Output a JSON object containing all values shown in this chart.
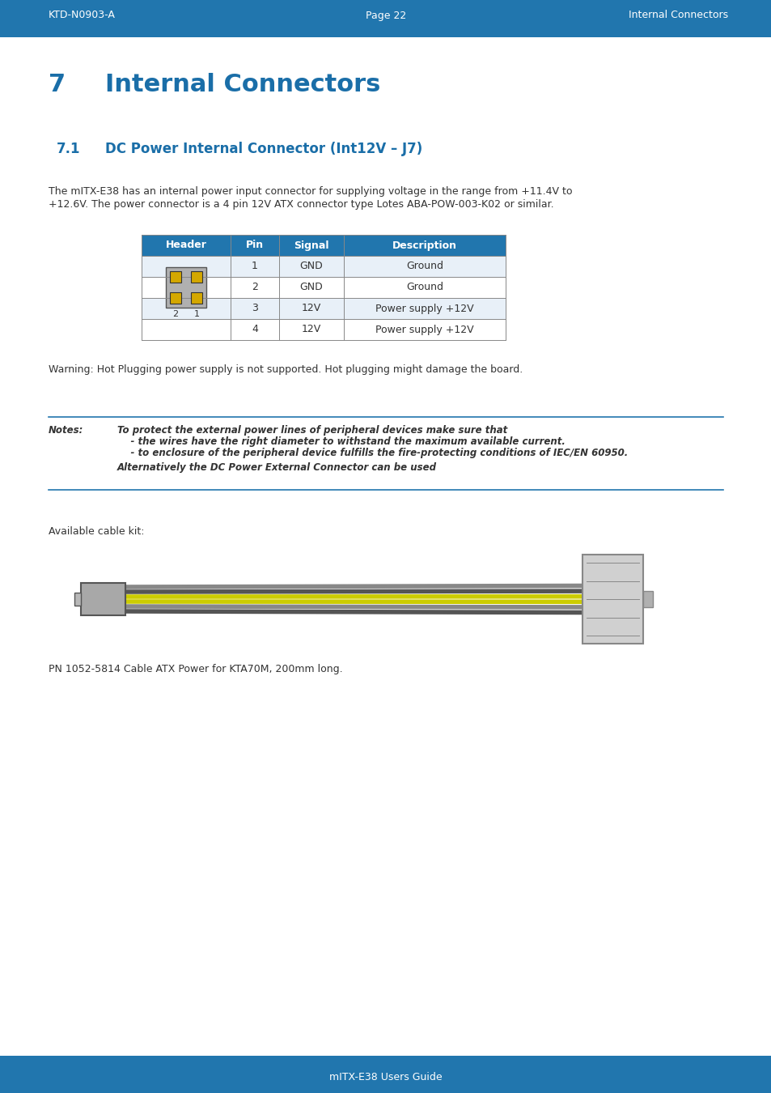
{
  "header_bg_color": "#2176AE",
  "header_text_color": "#FFFFFF",
  "header_left": "KTD-N0903-A",
  "header_center": "Page 22",
  "header_right": "Internal Connectors",
  "footer_text": "mITX-E38 Users Guide",
  "footer_bg_color": "#2176AE",
  "footer_text_color": "#FFFFFF",
  "body_bg_color": "#FFFFFF",
  "chapter_number": "7",
  "chapter_title": "Internal Connectors",
  "chapter_title_color": "#1A6EA8",
  "section_number": "7.1",
  "section_title": "DC Power Internal Connector (Int12V – J7)",
  "section_title_color": "#1A6EA8",
  "body_text_1": "The mITX-E38 has an internal power input connector for supplying voltage in the range from +11.4V to\n+12.6V. The power connector is a 4 pin 12V ATX connector type Lotes ABA-POW-003-K02 or similar.",
  "table_header_bg": "#2176AE",
  "table_header_text_color": "#FFFFFF",
  "table_headers": [
    "Header",
    "Pin",
    "Signal",
    "Description"
  ],
  "table_rows": [
    [
      "",
      "1",
      "GND",
      "Ground"
    ],
    [
      "",
      "2",
      "GND",
      "Ground"
    ],
    [
      "",
      "3",
      "12V",
      "Power supply +12V"
    ],
    [
      "",
      "4",
      "12V",
      "Power supply +12V"
    ]
  ],
  "warning_text": "Warning: Hot Plugging power supply is not supported. Hot plugging might damage the board.",
  "notes_label": "Notes:",
  "notes_text_bold": "To protect the external power lines of peripheral devices make sure that\n    - the wires have the right diameter to withstand the maximum available current.\n    - to enclosure of the peripheral device fulfills the fire-protecting conditions of IEC/EN 60950.",
  "notes_text_italic": "Alternatively the DC Power External Connector can be used",
  "cable_label": "Available cable kit:",
  "pn_text": "PN 1052-5814 Cable ATX Power for KTA70M, 200mm long.",
  "text_color": "#333333",
  "body_font_size": 9.5,
  "line_color": "#2176AE"
}
